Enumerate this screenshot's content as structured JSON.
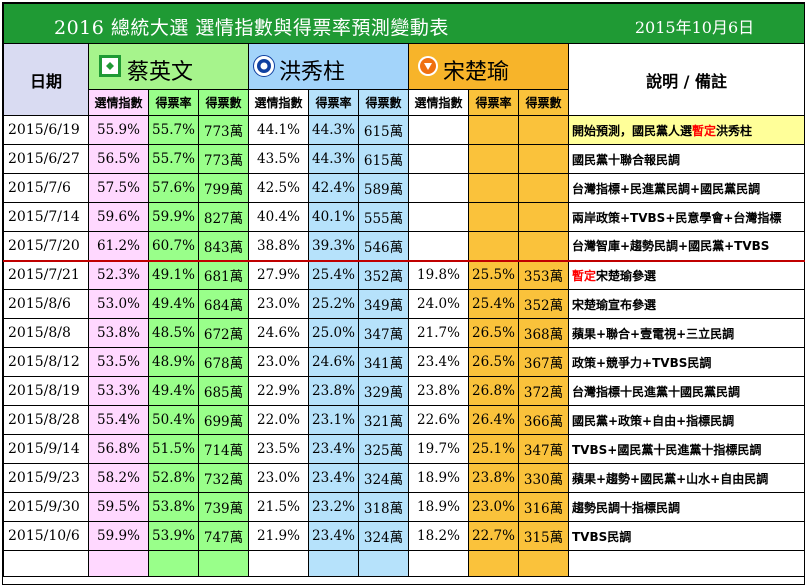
{
  "title": {
    "main": "2016  總統大選  選情指數與得票率預測變動表",
    "date": "2015年10月6日"
  },
  "header": {
    "date_label": "日期",
    "note_label": "說明 / 備註",
    "candidates": [
      {
        "name": "蔡英文",
        "logo": "dpp-party-logo",
        "color": "#a6f48c"
      },
      {
        "name": "洪秀柱",
        "logo": "kmt-party-logo",
        "color": "#a3d4fa"
      },
      {
        "name": "宋楚瑜",
        "logo": "pfp-party-logo",
        "color": "#f7b42a"
      }
    ],
    "sub": [
      "選情指數",
      "得票率",
      "得票數"
    ]
  },
  "colors": {
    "title_bg": "#1f9a34",
    "index_col": "#ffd8ff",
    "rate_col": "#99ff8a",
    "hung_col": "#b6e2fb",
    "soong_col": "#fac23b",
    "highlight": "#ffff99",
    "separator": "#c00000"
  },
  "rows": [
    {
      "date": "2015/6/19",
      "tsai": [
        "55.9%",
        "55.7%",
        "773萬"
      ],
      "hung": [
        "44.1%",
        "44.3%",
        "615萬"
      ],
      "soong": [
        "",
        "",
        ""
      ],
      "note_pre": "開始預測，國民黨人選",
      "note_red": "暫定",
      "note_post": "洪秀柱"
    },
    {
      "date": "2015/6/27",
      "tsai": [
        "56.5%",
        "55.7%",
        "773萬"
      ],
      "hung": [
        "43.5%",
        "44.3%",
        "615萬"
      ],
      "soong": [
        "",
        "",
        ""
      ],
      "note_pre": "國民黨十聯合報民調",
      "note_red": "",
      "note_post": ""
    },
    {
      "date": "2015/7/6",
      "tsai": [
        "57.5%",
        "57.6%",
        "799萬"
      ],
      "hung": [
        "42.5%",
        "42.4%",
        "589萬"
      ],
      "soong": [
        "",
        "",
        ""
      ],
      "note_pre": "台灣指標+民進黨民調+國民黨民調",
      "note_red": "",
      "note_post": ""
    },
    {
      "date": "2015/7/14",
      "tsai": [
        "59.6%",
        "59.9%",
        "827萬"
      ],
      "hung": [
        "40.4%",
        "40.1%",
        "555萬"
      ],
      "soong": [
        "",
        "",
        ""
      ],
      "note_pre": "兩岸政策+TVBS+民意學會+台灣指標",
      "note_red": "",
      "note_post": ""
    },
    {
      "date": "2015/7/20",
      "tsai": [
        "61.2%",
        "60.7%",
        "843萬"
      ],
      "hung": [
        "38.8%",
        "39.3%",
        "546萬"
      ],
      "soong": [
        "",
        "",
        ""
      ],
      "note_pre": "台灣智庫+趨勢民調+國民黨+TVBS",
      "note_red": "",
      "note_post": ""
    },
    {
      "date": "2015/7/21",
      "tsai": [
        "52.3%",
        "49.1%",
        "681萬"
      ],
      "hung": [
        "27.9%",
        "25.4%",
        "352萬"
      ],
      "soong": [
        "19.8%",
        "25.5%",
        "353萬"
      ],
      "note_pre": "",
      "note_red": "暫定",
      "note_post": "宋楚瑜參選"
    },
    {
      "date": "2015/8/6",
      "tsai": [
        "53.0%",
        "49.4%",
        "684萬"
      ],
      "hung": [
        "23.0%",
        "25.2%",
        "349萬"
      ],
      "soong": [
        "24.0%",
        "25.4%",
        "352萬"
      ],
      "note_pre": "宋楚瑜宣布參選",
      "note_red": "",
      "note_post": ""
    },
    {
      "date": "2015/8/8",
      "tsai": [
        "53.8%",
        "48.5%",
        "672萬"
      ],
      "hung": [
        "24.6%",
        "25.0%",
        "347萬"
      ],
      "soong": [
        "21.7%",
        "26.5%",
        "368萬"
      ],
      "note_pre": "蘋果+聯合+壹電視+三立民調",
      "note_red": "",
      "note_post": ""
    },
    {
      "date": "2015/8/12",
      "tsai": [
        "53.5%",
        "48.9%",
        "678萬"
      ],
      "hung": [
        "23.0%",
        "24.6%",
        "341萬"
      ],
      "soong": [
        "23.4%",
        "26.5%",
        "367萬"
      ],
      "note_pre": "政策+競爭力+TVBS民調",
      "note_red": "",
      "note_post": ""
    },
    {
      "date": "2015/8/19",
      "tsai": [
        "53.3%",
        "49.4%",
        "685萬"
      ],
      "hung": [
        "22.9%",
        "23.8%",
        "329萬"
      ],
      "soong": [
        "23.8%",
        "26.8%",
        "372萬"
      ],
      "note_pre": "台灣指標十民進黨十國民黨民調",
      "note_red": "",
      "note_post": ""
    },
    {
      "date": "2015/8/28",
      "tsai": [
        "55.4%",
        "50.4%",
        "699萬"
      ],
      "hung": [
        "22.0%",
        "23.1%",
        "321萬"
      ],
      "soong": [
        "22.6%",
        "26.4%",
        "366萬"
      ],
      "note_pre": "國民黨+政策+自由+指標民調",
      "note_red": "",
      "note_post": ""
    },
    {
      "date": "2015/9/14",
      "tsai": [
        "56.8%",
        "51.5%",
        "714萬"
      ],
      "hung": [
        "23.5%",
        "23.4%",
        "325萬"
      ],
      "soong": [
        "19.7%",
        "25.1%",
        "347萬"
      ],
      "note_pre": "TVBS+國民黨十民進黨十指標民調",
      "note_red": "",
      "note_post": ""
    },
    {
      "date": "2015/9/23",
      "tsai": [
        "58.2%",
        "52.8%",
        "732萬"
      ],
      "hung": [
        "23.0%",
        "23.4%",
        "324萬"
      ],
      "soong": [
        "18.9%",
        "23.8%",
        "330萬"
      ],
      "note_pre": "蘋果+趨勢+國民黨+山水+自由民調",
      "note_red": "",
      "note_post": ""
    },
    {
      "date": "2015/9/30",
      "tsai": [
        "59.5%",
        "53.8%",
        "739萬"
      ],
      "hung": [
        "21.5%",
        "23.2%",
        "318萬"
      ],
      "soong": [
        "18.9%",
        "23.0%",
        "316萬"
      ],
      "note_pre": "趨勢民調十指標民調",
      "note_red": "",
      "note_post": ""
    },
    {
      "date": "2015/10/6",
      "tsai": [
        "59.9%",
        "53.9%",
        "747萬"
      ],
      "hung": [
        "21.9%",
        "23.4%",
        "324萬"
      ],
      "soong": [
        "18.2%",
        "22.7%",
        "315萬"
      ],
      "note_pre": "TVBS民調",
      "note_red": "",
      "note_post": ""
    }
  ]
}
